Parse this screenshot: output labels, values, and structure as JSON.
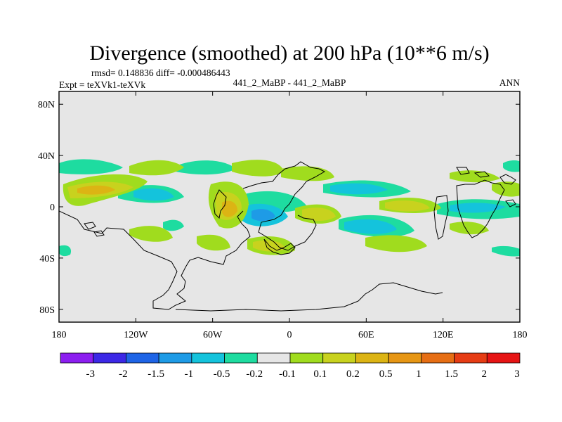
{
  "chart_data": {
    "type": "heatmap",
    "title": "Divergence (smoothed) at 200 hPa (10**6 m/s)",
    "stats": "rmsd= 0.148836 diff= -0.000486443",
    "left_label": "Expt = teXVk1-teXVk",
    "center_label": "441_2_MaBP - 441_2_MaBP",
    "right_label": "ANN",
    "x_ticks": [
      "180",
      "120W",
      "60W",
      "0",
      "60E",
      "120E",
      "180"
    ],
    "y_ticks": [
      "80N",
      "40N",
      "0",
      "40S",
      "80S"
    ],
    "xlim": [
      -180,
      180
    ],
    "ylim": [
      -90,
      90
    ],
    "colorbar": {
      "labels": [
        "-3",
        "-2",
        "-1.5",
        "-1",
        "-0.5",
        "-0.2",
        "-0.1",
        "0.1",
        "0.2",
        "0.5",
        "1",
        "1.5",
        "2",
        "3"
      ],
      "colors": [
        "#8c1ef0",
        "#3c28e6",
        "#1e64e6",
        "#1e9be6",
        "#14c3dc",
        "#1edca0",
        "#e6e6e6",
        "#a0dc1e",
        "#c8d21e",
        "#dcb414",
        "#e69614",
        "#e66e14",
        "#e63c14",
        "#e61414"
      ]
    },
    "field_colors": {
      "background": "#e6e6e6",
      "pos_weak": "#a0dc1e",
      "pos_mid": "#c8d21e",
      "pos_strong": "#dcb414",
      "pos_max": "#e69614",
      "neg_weak": "#1edca0",
      "neg_mid": "#14c3dc",
      "neg_strong": "#1e9be6"
    }
  }
}
